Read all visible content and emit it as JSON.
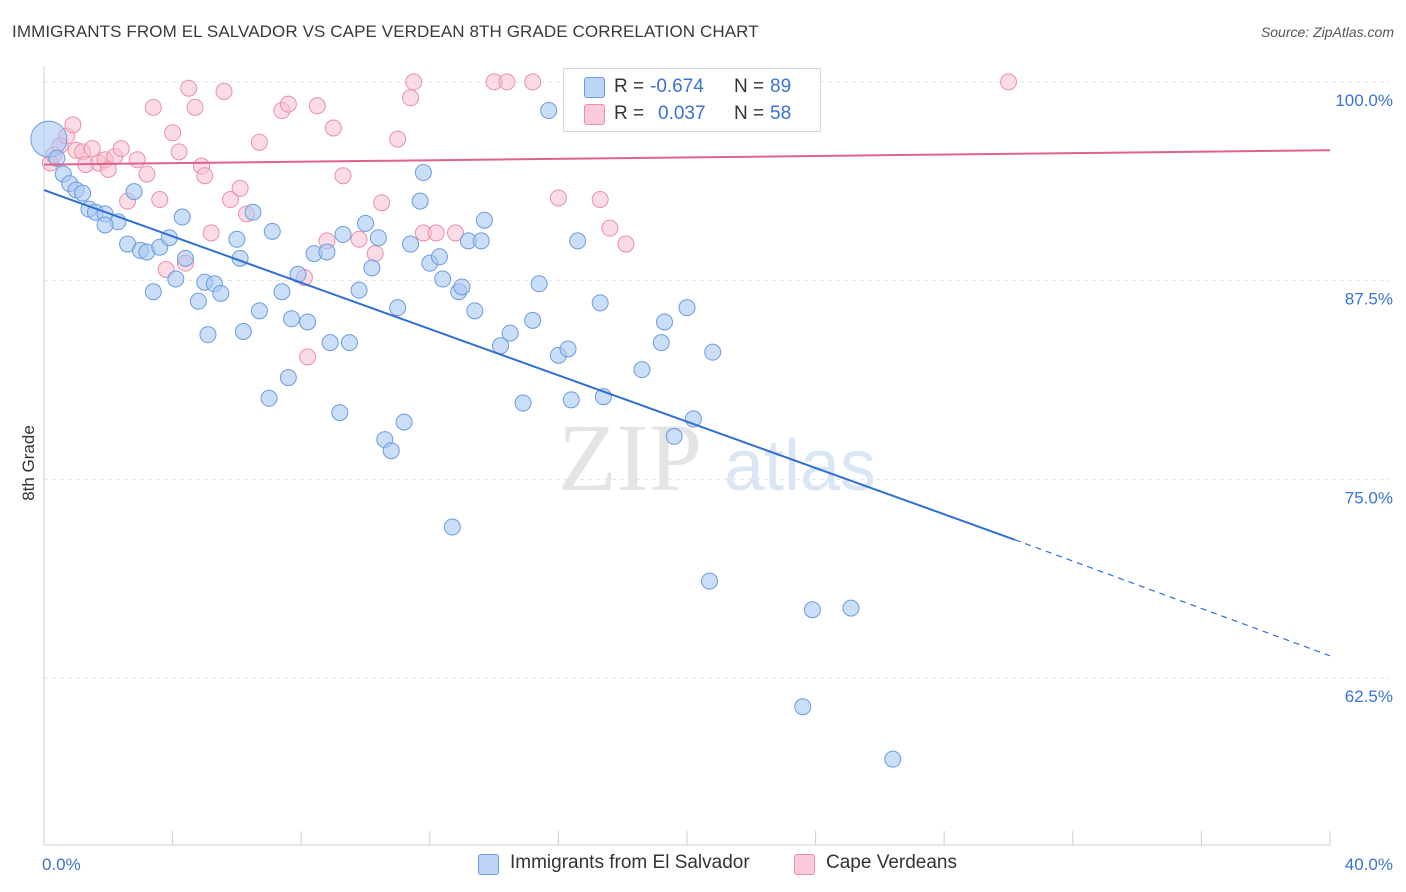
{
  "title": "IMMIGRANTS FROM EL SALVADOR VS CAPE VERDEAN 8TH GRADE CORRELATION CHART",
  "source": "Source: ZipAtlas.com",
  "watermark": {
    "zip": "ZIP",
    "atlas": "atlas"
  },
  "legend": {
    "rows": [
      {
        "r_label": "R =",
        "r_value": "-0.674",
        "n_label": "N =",
        "n_value": "89",
        "color": "#a9c8f2"
      },
      {
        "r_label": "R =",
        "r_value": "0.037",
        "n_label": "N =",
        "n_value": "58",
        "color": "#f8b5c8"
      }
    ]
  },
  "colors": {
    "blue_fill": "#a9c8f2",
    "blue_stroke": "#6b9be0",
    "blue_line": "#2f6fd3",
    "pink_fill": "#f8c0d0",
    "pink_stroke": "#ea8fa9",
    "pink_line": "#e0628b",
    "tick_label": "#3a72d6",
    "grid": "#e3e3e3"
  },
  "chart_data": {
    "type": "scatter",
    "title": "IMMIGRANTS FROM EL SALVADOR VS CAPE VERDEAN 8TH GRADE CORRELATION CHART",
    "xlabel": "",
    "ylabel": "8th Grade",
    "xlim": [
      0,
      40
    ],
    "ylim": [
      52,
      101
    ],
    "x_tick_labels": [
      "0.0%",
      "40.0%"
    ],
    "y_ticks": [
      62.5,
      75.0,
      87.5,
      100.0
    ],
    "y_tick_labels": [
      "62.5%",
      "75.0%",
      "87.5%",
      "100.0%"
    ],
    "grid": true,
    "legend_position": "bottom",
    "series": [
      {
        "name": "Immigrants from El Salvador",
        "color": "#a9c8f2",
        "trend": {
          "x0": 0,
          "y0": 93.2,
          "x1": 30.2,
          "y1": 71.2,
          "dashed_to_x": 40,
          "dashed_to_y": 63.9
        },
        "points": [
          [
            0.15,
            96.4
          ],
          [
            0.4,
            95.2
          ],
          [
            0.6,
            94.2
          ],
          [
            0.8,
            93.6
          ],
          [
            1.0,
            93.2
          ],
          [
            1.2,
            93.0
          ],
          [
            1.4,
            92.0
          ],
          [
            1.6,
            91.8
          ],
          [
            1.9,
            91.7
          ],
          [
            2.3,
            91.2
          ],
          [
            1.9,
            91.0
          ],
          [
            2.8,
            93.1
          ],
          [
            2.6,
            89.8
          ],
          [
            3.0,
            89.4
          ],
          [
            3.2,
            89.3
          ],
          [
            3.6,
            89.6
          ],
          [
            3.9,
            90.2
          ],
          [
            4.3,
            91.5
          ],
          [
            4.4,
            88.9
          ],
          [
            4.1,
            87.6
          ],
          [
            3.4,
            86.8
          ],
          [
            4.8,
            86.2
          ],
          [
            5.0,
            87.4
          ],
          [
            5.3,
            87.3
          ],
          [
            5.5,
            86.7
          ],
          [
            5.1,
            84.1
          ],
          [
            6.0,
            90.1
          ],
          [
            6.2,
            84.3
          ],
          [
            6.1,
            88.9
          ],
          [
            6.5,
            91.8
          ],
          [
            6.7,
            85.6
          ],
          [
            7.0,
            80.1
          ],
          [
            7.1,
            90.6
          ],
          [
            7.4,
            86.8
          ],
          [
            7.6,
            81.4
          ],
          [
            7.7,
            85.1
          ],
          [
            7.9,
            87.9
          ],
          [
            8.2,
            84.9
          ],
          [
            8.4,
            89.2
          ],
          [
            8.8,
            89.3
          ],
          [
            8.9,
            83.6
          ],
          [
            9.2,
            79.2
          ],
          [
            9.3,
            90.4
          ],
          [
            9.5,
            83.6
          ],
          [
            9.8,
            86.9
          ],
          [
            10.0,
            91.1
          ],
          [
            10.2,
            88.3
          ],
          [
            10.4,
            90.2
          ],
          [
            10.6,
            77.5
          ],
          [
            10.8,
            76.8
          ],
          [
            11.0,
            85.8
          ],
          [
            11.2,
            78.6
          ],
          [
            11.4,
            89.8
          ],
          [
            11.7,
            92.5
          ],
          [
            11.8,
            94.3
          ],
          [
            12.0,
            88.6
          ],
          [
            12.3,
            89.0
          ],
          [
            12.4,
            87.6
          ],
          [
            12.7,
            72.0
          ],
          [
            12.9,
            86.8
          ],
          [
            13.0,
            87.1
          ],
          [
            13.2,
            90.0
          ],
          [
            13.4,
            85.6
          ],
          [
            13.6,
            90.0
          ],
          [
            13.7,
            91.3
          ],
          [
            14.2,
            83.4
          ],
          [
            14.5,
            84.2
          ],
          [
            14.9,
            79.8
          ],
          [
            15.2,
            85.0
          ],
          [
            15.4,
            87.3
          ],
          [
            15.7,
            98.2
          ],
          [
            16.0,
            82.8
          ],
          [
            16.3,
            83.2
          ],
          [
            16.4,
            80.0
          ],
          [
            16.6,
            90.0
          ],
          [
            17.3,
            86.1
          ],
          [
            17.4,
            80.2
          ],
          [
            18.6,
            81.9
          ],
          [
            19.2,
            83.6
          ],
          [
            19.3,
            84.9
          ],
          [
            19.6,
            77.7
          ],
          [
            20.0,
            85.8
          ],
          [
            20.2,
            78.8
          ],
          [
            20.8,
            83.0
          ],
          [
            20.7,
            68.6
          ],
          [
            23.9,
            66.8
          ],
          [
            25.1,
            66.9
          ],
          [
            23.6,
            60.7
          ],
          [
            26.4,
            57.4
          ]
        ]
      },
      {
        "name": "Cape Verdeans",
        "color": "#f8c0d0",
        "trend": {
          "x0": 0,
          "y0": 94.8,
          "x1": 40,
          "y1": 95.7
        },
        "points": [
          [
            0.2,
            94.9
          ],
          [
            0.3,
            95.4
          ],
          [
            0.5,
            96.0
          ],
          [
            0.7,
            96.6
          ],
          [
            0.9,
            97.3
          ],
          [
            1.0,
            95.7
          ],
          [
            1.2,
            95.6
          ],
          [
            1.3,
            94.8
          ],
          [
            1.5,
            95.8
          ],
          [
            1.7,
            94.9
          ],
          [
            1.9,
            95.1
          ],
          [
            2.0,
            94.5
          ],
          [
            2.2,
            95.3
          ],
          [
            2.4,
            95.8
          ],
          [
            2.6,
            92.5
          ],
          [
            2.9,
            95.1
          ],
          [
            3.2,
            94.2
          ],
          [
            3.4,
            98.4
          ],
          [
            3.6,
            92.6
          ],
          [
            3.8,
            88.2
          ],
          [
            4.0,
            96.8
          ],
          [
            4.2,
            95.6
          ],
          [
            4.4,
            88.6
          ],
          [
            4.5,
            99.6
          ],
          [
            4.7,
            98.4
          ],
          [
            4.9,
            94.7
          ],
          [
            5.0,
            94.1
          ],
          [
            5.2,
            90.5
          ],
          [
            5.6,
            99.4
          ],
          [
            5.8,
            92.6
          ],
          [
            6.1,
            93.3
          ],
          [
            6.3,
            91.7
          ],
          [
            6.7,
            96.2
          ],
          [
            7.4,
            98.2
          ],
          [
            7.6,
            98.6
          ],
          [
            8.1,
            87.7
          ],
          [
            8.2,
            82.7
          ],
          [
            8.5,
            98.5
          ],
          [
            8.8,
            90.0
          ],
          [
            9.0,
            97.1
          ],
          [
            9.3,
            94.1
          ],
          [
            9.8,
            90.1
          ],
          [
            10.3,
            89.2
          ],
          [
            10.5,
            92.4
          ],
          [
            11.0,
            96.4
          ],
          [
            11.4,
            99.0
          ],
          [
            11.5,
            100.0
          ],
          [
            11.8,
            90.5
          ],
          [
            12.2,
            90.5
          ],
          [
            12.8,
            90.5
          ],
          [
            14.0,
            100.0
          ],
          [
            14.4,
            100.0
          ],
          [
            15.2,
            100.0
          ],
          [
            16.0,
            92.7
          ],
          [
            17.3,
            92.6
          ],
          [
            17.6,
            90.8
          ],
          [
            18.1,
            89.8
          ],
          [
            30.0,
            100.0
          ]
        ]
      }
    ]
  }
}
